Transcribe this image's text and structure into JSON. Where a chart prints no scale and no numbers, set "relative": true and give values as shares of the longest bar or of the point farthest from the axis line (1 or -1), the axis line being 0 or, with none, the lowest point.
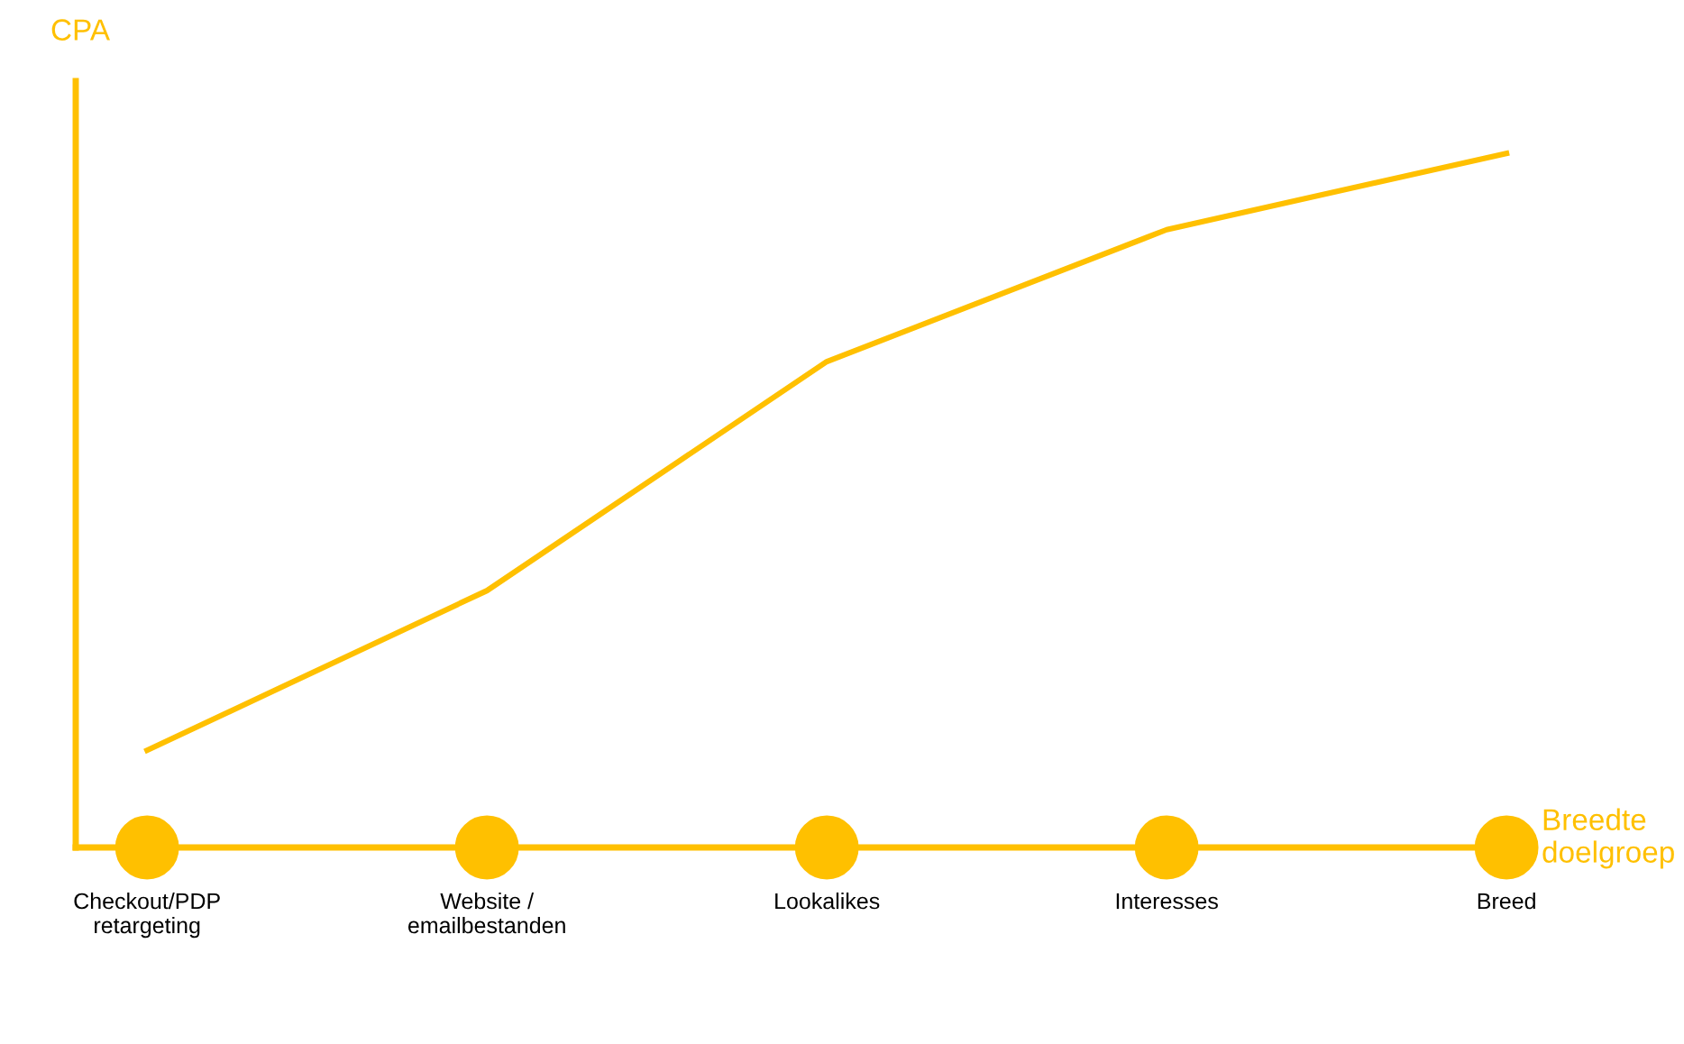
{
  "chart_data": {
    "type": "line",
    "relative": true,
    "xlabel": "Breedte\ndoelgroep",
    "ylabel": "CPA",
    "categories": [
      "Checkout/PDP\nretargeting",
      "Website /\nemailbestanden",
      "Lookalikes",
      "Interesses",
      "Breed"
    ],
    "series": [
      {
        "color": "#ffc000",
        "values": [
          0.14,
          0.37,
          0.7,
          0.89,
          1.0
        ]
      },
      {
        "type": "scatter",
        "marker": "circle",
        "color": "#ffc000",
        "values": [
          0,
          0,
          0,
          0,
          0
        ]
      }
    ],
    "line_style": "solid",
    "grid": false,
    "legend": false
  }
}
